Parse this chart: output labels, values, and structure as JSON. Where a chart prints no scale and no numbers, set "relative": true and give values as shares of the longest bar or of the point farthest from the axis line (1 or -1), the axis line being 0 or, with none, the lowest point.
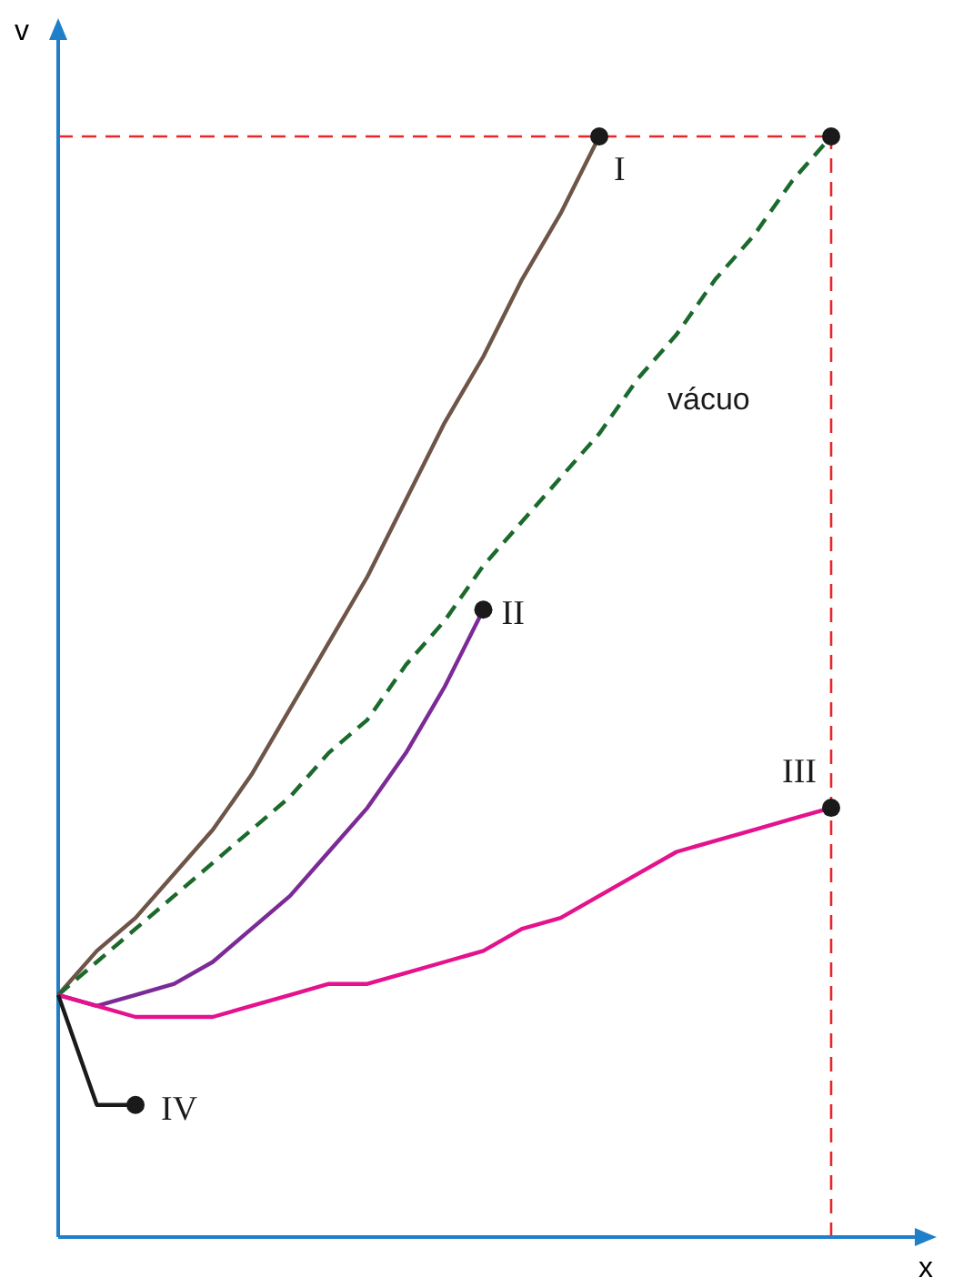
{
  "chart_data": {
    "type": "line",
    "relative": true,
    "xlabel": "x",
    "ylabel": "v",
    "categories": [
      null,
      null,
      null,
      null,
      null,
      null,
      null,
      null,
      null,
      null,
      null,
      null,
      null,
      null,
      null,
      null,
      null,
      null,
      null,
      null,
      null
    ],
    "series": [
      {
        "name": "I",
        "color": "#6e5548",
        "values": [
          0.22,
          0.26,
          0.29,
          0.33,
          0.37,
          0.42,
          0.48,
          0.54,
          0.6,
          0.67,
          0.74,
          0.8,
          0.87,
          0.93,
          1,
          null,
          null,
          null,
          null,
          null,
          null
        ]
      },
      {
        "name": "vácuo",
        "color": "#1b6a2c",
        "line_style": "dashed",
        "values": [
          0.22,
          0.25,
          0.28,
          0.31,
          0.34,
          0.37,
          0.4,
          0.44,
          0.47,
          0.52,
          0.56,
          0.61,
          0.65,
          0.69,
          0.73,
          0.78,
          0.82,
          0.87,
          0.91,
          0.96,
          1
        ]
      },
      {
        "name": "II",
        "color": "#7b2a96",
        "values": [
          0.22,
          0.21,
          0.22,
          0.23,
          0.25,
          0.28,
          0.31,
          0.35,
          0.39,
          0.44,
          0.5,
          0.57,
          null,
          null,
          null,
          null,
          null,
          null,
          null,
          null,
          null
        ]
      },
      {
        "name": "III",
        "color": "#e4128c",
        "values": [
          0.22,
          0.21,
          0.2,
          0.2,
          0.2,
          0.21,
          0.22,
          0.23,
          0.23,
          0.24,
          0.25,
          0.26,
          0.28,
          0.29,
          0.31,
          0.33,
          0.35,
          0.36,
          0.37,
          0.38,
          0.39
        ]
      },
      {
        "name": "IV",
        "color": "#1a1a1a",
        "values": [
          0.22,
          0.12,
          0.12,
          null,
          null,
          null,
          null,
          null,
          null,
          null,
          null,
          null,
          null,
          null,
          null,
          null,
          null,
          null,
          null,
          null,
          null
        ]
      }
    ],
    "ref_lines": [
      {
        "axis": "y",
        "value": 1,
        "color": "#e8262a",
        "line_style": "dashed"
      }
    ]
  }
}
